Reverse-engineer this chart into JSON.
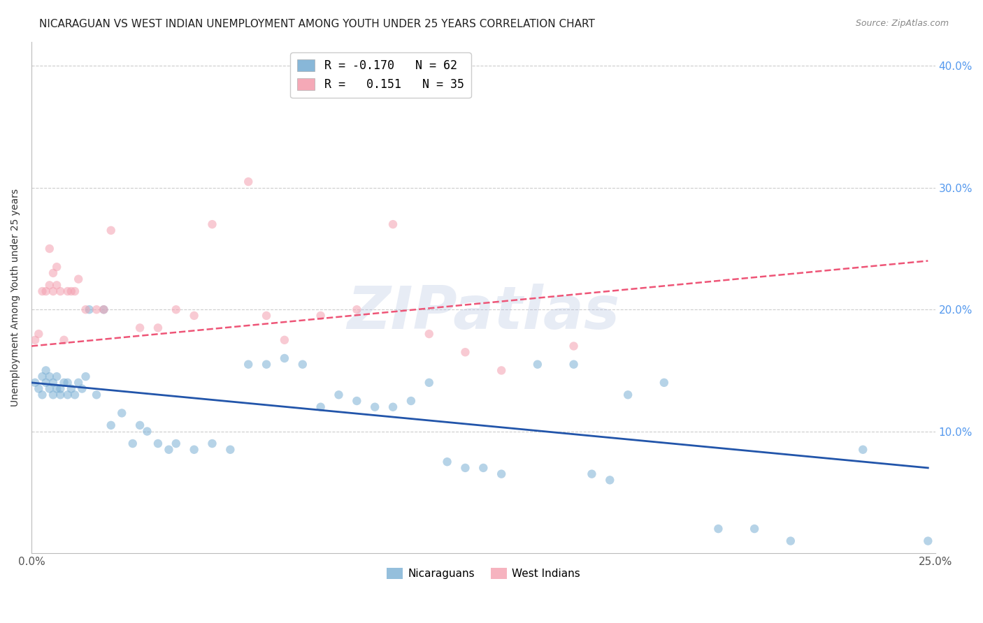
{
  "title": "NICARAGUAN VS WEST INDIAN UNEMPLOYMENT AMONG YOUTH UNDER 25 YEARS CORRELATION CHART",
  "source": "Source: ZipAtlas.com",
  "ylabel": "Unemployment Among Youth under 25 years",
  "xlim": [
    0.0,
    0.25
  ],
  "ylim": [
    0.0,
    0.42
  ],
  "legend_r1_text": "R = -0.170   N = 62",
  "legend_r2_text": "R =   0.151   N = 35",
  "watermark": "ZIPatlas",
  "blue_color": "#7BAFD4",
  "pink_color": "#F4A0B0",
  "line_blue": "#2255AA",
  "line_pink": "#EE5577",
  "blue_scatter_x": [
    0.001,
    0.002,
    0.003,
    0.003,
    0.004,
    0.004,
    0.005,
    0.005,
    0.006,
    0.006,
    0.007,
    0.007,
    0.008,
    0.008,
    0.009,
    0.01,
    0.01,
    0.011,
    0.012,
    0.013,
    0.014,
    0.015,
    0.016,
    0.018,
    0.02,
    0.022,
    0.025,
    0.028,
    0.03,
    0.032,
    0.035,
    0.038,
    0.04,
    0.045,
    0.05,
    0.055,
    0.06,
    0.065,
    0.07,
    0.075,
    0.08,
    0.085,
    0.09,
    0.095,
    0.1,
    0.105,
    0.11,
    0.115,
    0.12,
    0.125,
    0.13,
    0.14,
    0.15,
    0.155,
    0.16,
    0.165,
    0.175,
    0.19,
    0.2,
    0.21,
    0.23,
    0.248
  ],
  "blue_scatter_y": [
    0.14,
    0.135,
    0.13,
    0.145,
    0.14,
    0.15,
    0.135,
    0.145,
    0.13,
    0.14,
    0.135,
    0.145,
    0.13,
    0.135,
    0.14,
    0.13,
    0.14,
    0.135,
    0.13,
    0.14,
    0.135,
    0.145,
    0.2,
    0.13,
    0.2,
    0.105,
    0.115,
    0.09,
    0.105,
    0.1,
    0.09,
    0.085,
    0.09,
    0.085,
    0.09,
    0.085,
    0.155,
    0.155,
    0.16,
    0.155,
    0.12,
    0.13,
    0.125,
    0.12,
    0.12,
    0.125,
    0.14,
    0.075,
    0.07,
    0.07,
    0.065,
    0.155,
    0.155,
    0.065,
    0.06,
    0.13,
    0.14,
    0.02,
    0.02,
    0.01,
    0.085,
    0.01
  ],
  "pink_scatter_x": [
    0.001,
    0.002,
    0.003,
    0.004,
    0.005,
    0.005,
    0.006,
    0.006,
    0.007,
    0.007,
    0.008,
    0.009,
    0.01,
    0.011,
    0.012,
    0.013,
    0.015,
    0.018,
    0.02,
    0.022,
    0.03,
    0.035,
    0.04,
    0.045,
    0.05,
    0.06,
    0.065,
    0.07,
    0.08,
    0.09,
    0.1,
    0.11,
    0.12,
    0.13,
    0.15
  ],
  "pink_scatter_y": [
    0.175,
    0.18,
    0.215,
    0.215,
    0.22,
    0.25,
    0.215,
    0.23,
    0.22,
    0.235,
    0.215,
    0.175,
    0.215,
    0.215,
    0.215,
    0.225,
    0.2,
    0.2,
    0.2,
    0.265,
    0.185,
    0.185,
    0.2,
    0.195,
    0.27,
    0.305,
    0.195,
    0.175,
    0.195,
    0.2,
    0.27,
    0.18,
    0.165,
    0.15,
    0.17
  ],
  "blue_line_x": [
    0.0,
    0.248
  ],
  "blue_line_y": [
    0.14,
    0.07
  ],
  "pink_line_x": [
    0.0,
    0.248
  ],
  "pink_line_y": [
    0.17,
    0.24
  ],
  "title_fontsize": 11,
  "source_fontsize": 9,
  "ylabel_fontsize": 10,
  "scatter_size": 80,
  "scatter_alpha": 0.55,
  "background_color": "#FFFFFF",
  "grid_color": "#CCCCCC",
  "right_axis_color": "#5599EE"
}
